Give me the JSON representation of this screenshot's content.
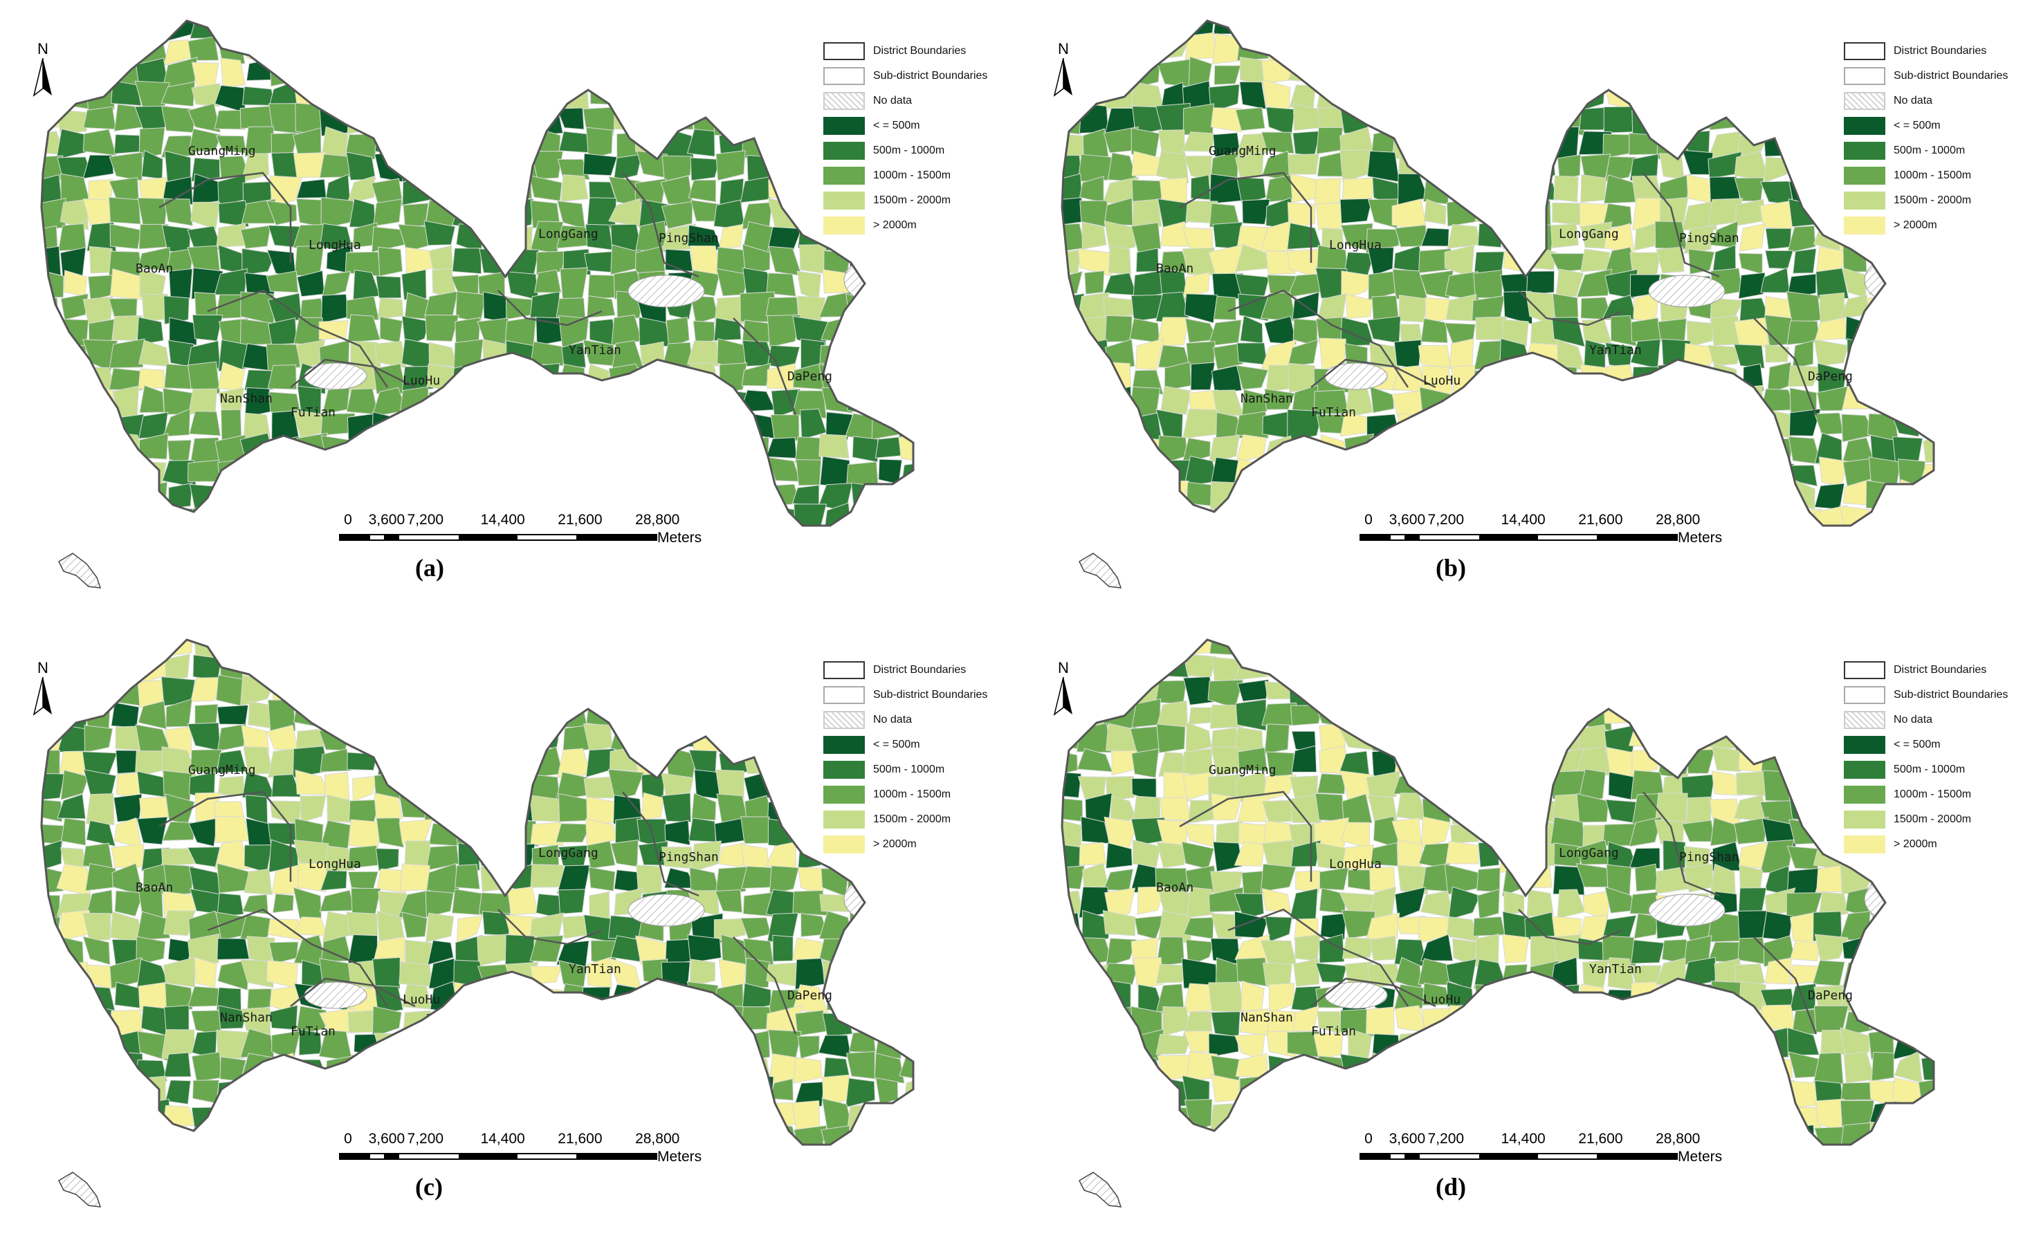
{
  "panels": [
    {
      "label": "(a)"
    },
    {
      "label": "(b)"
    },
    {
      "label": "(c)"
    },
    {
      "label": "(d)"
    }
  ],
  "north_label": "N",
  "legend": {
    "items": [
      {
        "label": "District Boundaries",
        "fill": "#ffffff",
        "stroke": "#333333"
      },
      {
        "label": "Sub-district Boundaries",
        "fill": "#ffffff",
        "stroke": "#aaaaaa"
      },
      {
        "label": "No data",
        "fill": "hatch",
        "stroke": "#cccccc"
      },
      {
        "label": "< = 500m",
        "fill": "#0b5a2c",
        "stroke": "#0b5a2c"
      },
      {
        "label": "500m - 1000m",
        "fill": "#2f7f3a",
        "stroke": "#2f7f3a"
      },
      {
        "label": "1000m - 1500m",
        "fill": "#6aa84f",
        "stroke": "#6aa84f"
      },
      {
        "label": "1500m - 2000m",
        "fill": "#c5dd8a",
        "stroke": "#c5dd8a"
      },
      {
        "label": "> 2000m",
        "fill": "#f6f09a",
        "stroke": "#f6f09a"
      }
    ]
  },
  "scalebar": {
    "ticks": [
      "0",
      "3,600",
      "7,200",
      "14,400",
      "21,600",
      "28,800"
    ],
    "unit": "Meters"
  },
  "districts": [
    "GuangMing",
    "LongHua",
    "BaoAn",
    "LongGang",
    "PingShan",
    "YanTian",
    "DaPeng",
    "NanShan",
    "FuTian",
    "LuoHu"
  ],
  "colors": {
    "class_1": "#0b5a2c",
    "class_2": "#2f7f3a",
    "class_3": "#6aa84f",
    "class_4": "#c5dd8a",
    "class_5": "#f6f09a",
    "district_boundary": "#555555",
    "subdistrict_boundary": "#d9d9d9"
  }
}
